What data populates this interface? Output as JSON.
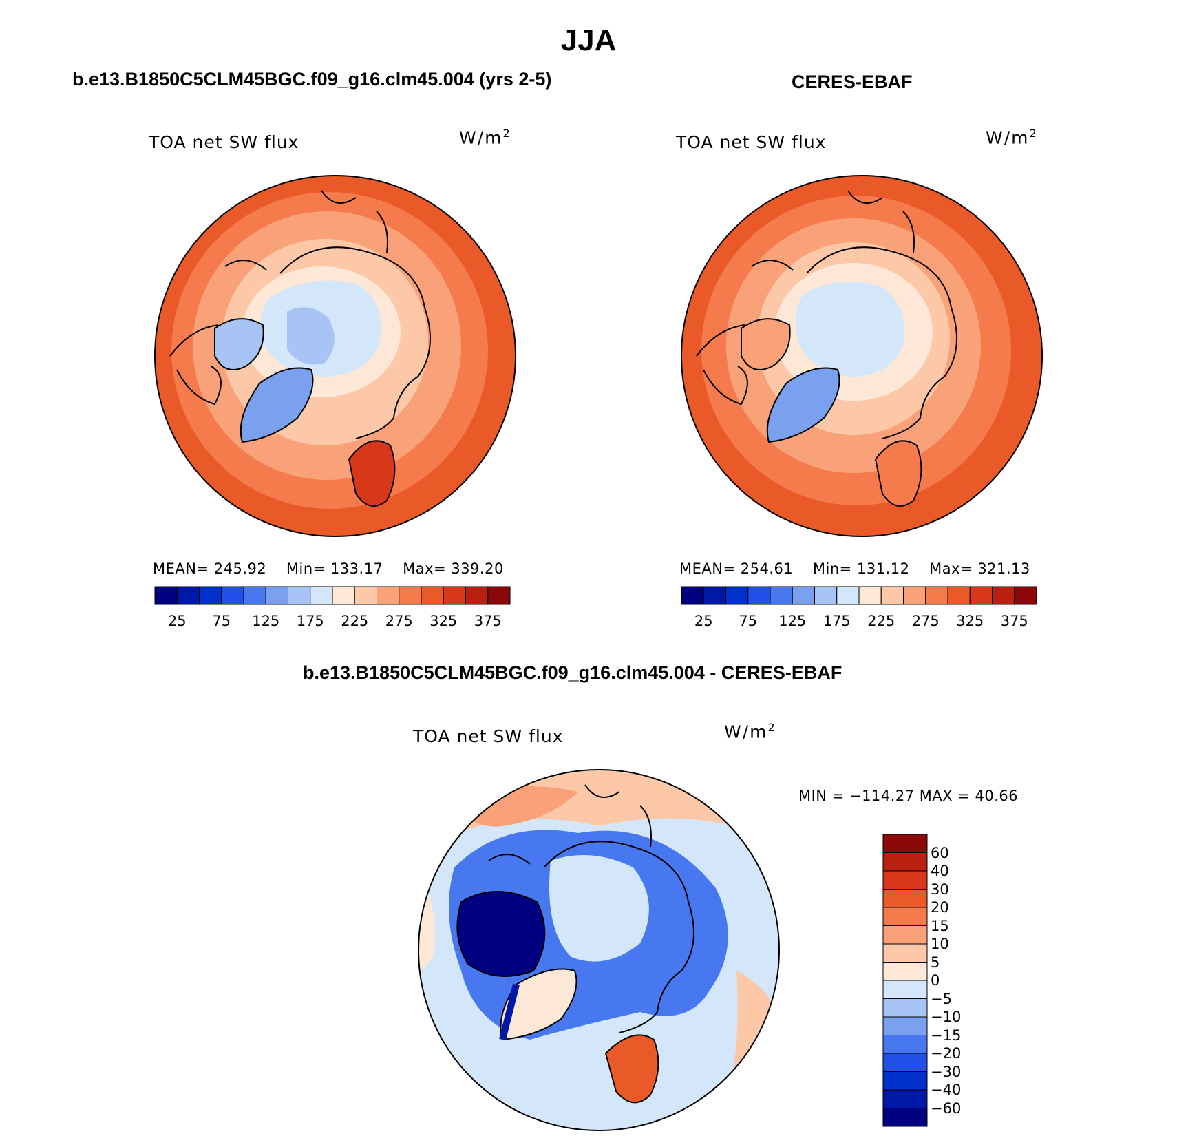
{
  "figure": {
    "season": "JJA",
    "colors": {
      "blues": [
        "#000080",
        "#0018a8",
        "#0030cc",
        "#2050e8",
        "#4878f0",
        "#7aa0f0",
        "#a8c4f4",
        "#d4e6fa"
      ],
      "reds": [
        "#fde8d8",
        "#fcc8a8",
        "#f9a27a",
        "#f57a4c",
        "#ea5a28",
        "#d8381a",
        "#b82010",
        "#8c0808"
      ]
    }
  },
  "panels": [
    {
      "title": "b.e13.B1850C5CLM45BGC.f09_g16.clm45.004 (yrs 2-5)",
      "variable": "TOA net SW flux",
      "units_base": "W/m",
      "units_exp": "2",
      "stats": {
        "mean": "MEAN= 245.92",
        "min": "Min= 133.17",
        "max": "Max= 339.20"
      },
      "colorbar_ticks": [
        "25",
        "75",
        "125",
        "175",
        "225",
        "275",
        "325",
        "375"
      ]
    },
    {
      "title": "CERES-EBAF",
      "variable": "TOA net SW flux",
      "units_base": "W/m",
      "units_exp": "2",
      "stats": {
        "mean": "MEAN= 254.61",
        "min": "Min= 131.12",
        "max": "Max= 321.13"
      },
      "colorbar_ticks": [
        "25",
        "75",
        "125",
        "175",
        "225",
        "275",
        "325",
        "375"
      ]
    }
  ],
  "difference": {
    "title": "b.e13.B1850C5CLM45BGC.f09_g16.clm45.004 - CERES-EBAF",
    "variable": "TOA net SW flux",
    "units_base": "W/m",
    "units_exp": "2",
    "minmax": "MIN = −114.27 MAX =   40.66",
    "colorbar_ticks": [
      "60",
      "40",
      "30",
      "20",
      "15",
      "10",
      "5",
      "0",
      "−5",
      "−10",
      "−15",
      "−20",
      "−30",
      "−40",
      "−60"
    ],
    "colorbar_colors": [
      "#8c0808",
      "#b82010",
      "#d8381a",
      "#ea5a28",
      "#f57a4c",
      "#f9a27a",
      "#fcc8a8",
      "#fde8d8",
      "#d4e6fa",
      "#a8c4f4",
      "#7aa0f0",
      "#4878f0",
      "#2050e8",
      "#0030cc",
      "#0018a8",
      "#000080"
    ]
  }
}
